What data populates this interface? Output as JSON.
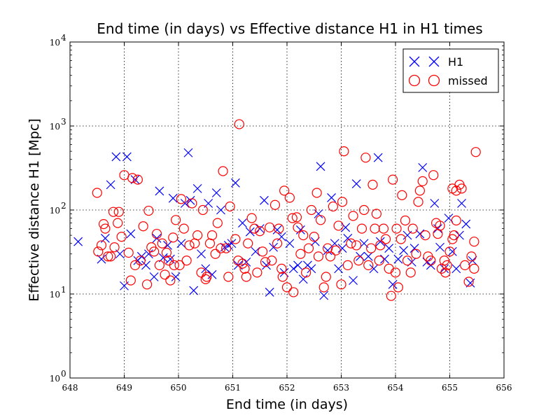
{
  "chart_data": {
    "type": "scatter",
    "title": "End time (in days) vs Effective distance H1 in H1 times",
    "xlabel": "End time (in days)",
    "ylabel": "Effective distance H1 [Mpc]",
    "xlim": [
      648,
      656
    ],
    "ylim": [
      1,
      10000
    ],
    "yscale": "log",
    "grid": true,
    "legend_position": "top-right",
    "x_ticks": [
      "648",
      "649",
      "650",
      "651",
      "652",
      "653",
      "654",
      "655",
      "656"
    ],
    "y_ticks": [
      {
        "base": "10",
        "exp": "0"
      },
      {
        "base": "10",
        "exp": "1"
      },
      {
        "base": "10",
        "exp": "2"
      },
      {
        "base": "10",
        "exp": "3"
      },
      {
        "base": "10",
        "exp": "4"
      }
    ],
    "series": [
      {
        "name": "H1",
        "marker": "x",
        "color": "#0000ff",
        "points": [
          [
            648.15,
            42
          ],
          [
            648.58,
            26
          ],
          [
            648.65,
            46
          ],
          [
            648.75,
            200
          ],
          [
            648.85,
            430
          ],
          [
            648.92,
            30
          ],
          [
            649.0,
            12.5
          ],
          [
            649.05,
            430
          ],
          [
            649.12,
            52
          ],
          [
            649.2,
            230
          ],
          [
            649.25,
            25
          ],
          [
            649.32,
            28
          ],
          [
            649.4,
            22
          ],
          [
            649.45,
            30
          ],
          [
            649.55,
            16
          ],
          [
            649.6,
            46
          ],
          [
            649.65,
            168
          ],
          [
            649.72,
            27
          ],
          [
            649.8,
            38
          ],
          [
            649.85,
            26
          ],
          [
            649.9,
            138
          ],
          [
            649.95,
            16
          ],
          [
            650.05,
            40
          ],
          [
            650.12,
            120
          ],
          [
            650.18,
            480
          ],
          [
            650.22,
            130
          ],
          [
            650.28,
            11
          ],
          [
            650.35,
            180
          ],
          [
            650.42,
            30
          ],
          [
            650.5,
            20
          ],
          [
            650.55,
            120
          ],
          [
            650.62,
            17
          ],
          [
            650.7,
            160
          ],
          [
            650.78,
            100
          ],
          [
            650.85,
            36
          ],
          [
            650.92,
            38
          ],
          [
            650.98,
            40
          ],
          [
            651.05,
            210
          ],
          [
            651.1,
            22
          ],
          [
            651.18,
            70
          ],
          [
            651.25,
            24
          ],
          [
            651.32,
            55
          ],
          [
            651.42,
            32
          ],
          [
            651.5,
            60
          ],
          [
            651.58,
            130
          ],
          [
            651.62,
            22
          ],
          [
            651.68,
            10.5
          ],
          [
            651.75,
            36
          ],
          [
            651.82,
            58
          ],
          [
            651.9,
            48
          ],
          [
            651.95,
            18
          ],
          [
            652.05,
            40
          ],
          [
            652.12,
            20
          ],
          [
            652.2,
            22
          ],
          [
            652.25,
            58
          ],
          [
            652.3,
            15
          ],
          [
            652.38,
            22
          ],
          [
            652.45,
            20
          ],
          [
            652.52,
            42
          ],
          [
            652.58,
            90
          ],
          [
            652.62,
            330
          ],
          [
            652.68,
            9.6
          ],
          [
            652.75,
            33
          ],
          [
            652.82,
            140
          ],
          [
            652.88,
            40
          ],
          [
            652.95,
            20
          ],
          [
            653.02,
            35
          ],
          [
            653.08,
            62
          ],
          [
            653.12,
            46
          ],
          [
            653.22,
            14.5
          ],
          [
            653.28,
            205
          ],
          [
            653.35,
            28
          ],
          [
            653.42,
            40
          ],
          [
            653.5,
            28
          ],
          [
            653.6,
            20
          ],
          [
            653.68,
            420
          ],
          [
            653.72,
            42
          ],
          [
            653.8,
            26
          ],
          [
            653.88,
            35
          ],
          [
            653.95,
            13
          ],
          [
            654.05,
            26
          ],
          [
            654.15,
            33
          ],
          [
            654.22,
            50
          ],
          [
            654.3,
            24
          ],
          [
            654.35,
            35
          ],
          [
            654.45,
            52
          ],
          [
            654.5,
            320
          ],
          [
            654.58,
            24
          ],
          [
            654.65,
            22
          ],
          [
            654.72,
            120
          ],
          [
            654.78,
            60
          ],
          [
            654.82,
            36
          ],
          [
            654.9,
            20
          ],
          [
            654.98,
            80
          ],
          [
            655.05,
            32
          ],
          [
            655.12,
            20
          ],
          [
            655.18,
            50
          ],
          [
            655.22,
            120
          ],
          [
            655.3,
            68
          ],
          [
            655.38,
            13.5
          ],
          [
            655.42,
            25
          ]
        ]
      },
      {
        "name": "missed",
        "marker": "o",
        "color": "#ff0000",
        "points": [
          [
            648.5,
            160
          ],
          [
            648.52,
            32
          ],
          [
            648.58,
            38
          ],
          [
            648.62,
            68
          ],
          [
            648.65,
            60
          ],
          [
            648.7,
            28
          ],
          [
            648.75,
            28
          ],
          [
            648.8,
            95
          ],
          [
            648.82,
            36
          ],
          [
            648.88,
            70
          ],
          [
            648.9,
            95
          ],
          [
            648.95,
            48
          ],
          [
            649.0,
            260
          ],
          [
            649.08,
            31
          ],
          [
            649.12,
            14.5
          ],
          [
            649.15,
            240
          ],
          [
            649.2,
            22
          ],
          [
            649.25,
            230
          ],
          [
            649.3,
            25
          ],
          [
            649.35,
            64
          ],
          [
            649.42,
            13
          ],
          [
            649.45,
            98
          ],
          [
            649.5,
            36
          ],
          [
            649.55,
            32
          ],
          [
            649.6,
            52
          ],
          [
            649.65,
            22
          ],
          [
            649.7,
            40
          ],
          [
            649.75,
            17
          ],
          [
            649.78,
            31
          ],
          [
            649.82,
            25
          ],
          [
            649.85,
            14.5
          ],
          [
            649.9,
            47
          ],
          [
            649.92,
            22
          ],
          [
            649.95,
            76
          ],
          [
            650.02,
            22
          ],
          [
            650.05,
            135
          ],
          [
            650.1,
            60
          ],
          [
            650.15,
            25
          ],
          [
            650.2,
            38
          ],
          [
            650.25,
            120
          ],
          [
            650.3,
            40
          ],
          [
            650.35,
            50
          ],
          [
            650.42,
            18
          ],
          [
            650.45,
            100
          ],
          [
            650.5,
            15
          ],
          [
            650.52,
            16
          ],
          [
            650.58,
            40
          ],
          [
            650.62,
            50
          ],
          [
            650.68,
            30
          ],
          [
            650.72,
            70
          ],
          [
            650.78,
            35
          ],
          [
            650.82,
            290
          ],
          [
            650.88,
            35
          ],
          [
            650.92,
            16
          ],
          [
            650.95,
            110
          ],
          [
            651.05,
            45
          ],
          [
            651.1,
            25
          ],
          [
            651.12,
            1050
          ],
          [
            651.18,
            23
          ],
          [
            651.22,
            20
          ],
          [
            651.25,
            16
          ],
          [
            651.28,
            40
          ],
          [
            651.35,
            80
          ],
          [
            651.4,
            60
          ],
          [
            651.45,
            18
          ],
          [
            651.5,
            56
          ],
          [
            651.55,
            32
          ],
          [
            651.6,
            24
          ],
          [
            651.68,
            62
          ],
          [
            651.72,
            25
          ],
          [
            651.78,
            115
          ],
          [
            651.82,
            40
          ],
          [
            651.85,
            60
          ],
          [
            651.9,
            20
          ],
          [
            651.92,
            16
          ],
          [
            651.95,
            170
          ],
          [
            652.0,
            12
          ],
          [
            652.05,
            140
          ],
          [
            652.1,
            80
          ],
          [
            652.12,
            10.5
          ],
          [
            652.18,
            82
          ],
          [
            652.2,
            62
          ],
          [
            652.25,
            30
          ],
          [
            652.3,
            50
          ],
          [
            652.35,
            18
          ],
          [
            652.4,
            35
          ],
          [
            652.45,
            100
          ],
          [
            652.5,
            48
          ],
          [
            652.55,
            160
          ],
          [
            652.58,
            28
          ],
          [
            652.62,
            76
          ],
          [
            652.68,
            12
          ],
          [
            652.72,
            16
          ],
          [
            652.75,
            35
          ],
          [
            652.8,
            28
          ],
          [
            652.85,
            110
          ],
          [
            652.9,
            33
          ],
          [
            652.95,
            65
          ],
          [
            653.0,
            13
          ],
          [
            653.02,
            125
          ],
          [
            653.05,
            500
          ],
          [
            653.12,
            22
          ],
          [
            653.18,
            40
          ],
          [
            653.22,
            85
          ],
          [
            653.28,
            38
          ],
          [
            653.32,
            25
          ],
          [
            653.38,
            60
          ],
          [
            653.42,
            100
          ],
          [
            653.45,
            420
          ],
          [
            653.5,
            22
          ],
          [
            653.55,
            35
          ],
          [
            653.58,
            200
          ],
          [
            653.62,
            60
          ],
          [
            653.65,
            90
          ],
          [
            653.7,
            25
          ],
          [
            653.72,
            38
          ],
          [
            653.78,
            60
          ],
          [
            653.82,
            45
          ],
          [
            653.88,
            20
          ],
          [
            653.92,
            9.5
          ],
          [
            653.95,
            230
          ],
          [
            654.0,
            18
          ],
          [
            654.02,
            60
          ],
          [
            654.05,
            12
          ],
          [
            654.1,
            45
          ],
          [
            654.12,
            150
          ],
          [
            654.18,
            75
          ],
          [
            654.22,
            25
          ],
          [
            654.28,
            18
          ],
          [
            654.32,
            60
          ],
          [
            654.38,
            30
          ],
          [
            654.42,
            125
          ],
          [
            654.45,
            170
          ],
          [
            654.5,
            220
          ],
          [
            654.55,
            50
          ],
          [
            654.6,
            28
          ],
          [
            654.65,
            25
          ],
          [
            654.7,
            260
          ],
          [
            654.75,
            70
          ],
          [
            654.78,
            52
          ],
          [
            654.82,
            65
          ],
          [
            654.85,
            20
          ],
          [
            654.9,
            25
          ],
          [
            654.92,
            18
          ],
          [
            654.95,
            22
          ],
          [
            655.0,
            32
          ],
          [
            655.05,
            45
          ],
          [
            655.08,
            50
          ],
          [
            655.12,
            75
          ],
          [
            655.18,
            200
          ],
          [
            655.22,
            180
          ],
          [
            655.28,
            22
          ],
          [
            655.35,
            14
          ],
          [
            655.4,
            28
          ],
          [
            655.45,
            20
          ],
          [
            655.48,
            490
          ],
          [
            655.12,
            170
          ],
          [
            655.05,
            180
          ],
          [
            655.45,
            42
          ]
        ]
      }
    ]
  }
}
